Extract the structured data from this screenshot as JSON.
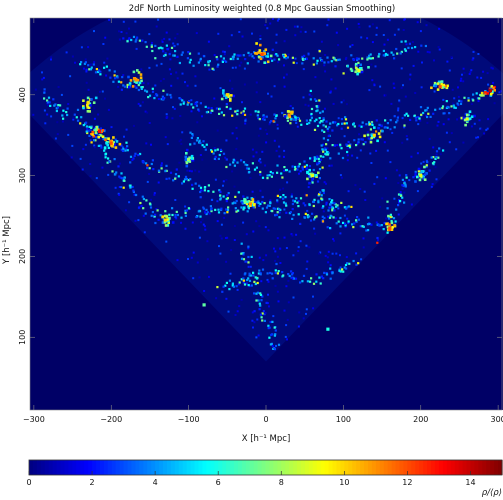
{
  "chart_data": {
    "type": "heatmap",
    "title": "2dF North Luminosity weighted (0.8 Mpc Gaussian Smoothing)",
    "xlabel": "X [h⁻¹ Mpc]",
    "ylabel": "Y [h⁻¹ Mpc]",
    "xlim": [
      -305,
      305
    ],
    "ylim": [
      10,
      495
    ],
    "x_ticks": [
      -300,
      -200,
      -100,
      0,
      100,
      200,
      300
    ],
    "x_tick_labels": [
      "−300",
      "−200",
      "−100",
      "0",
      "100",
      "200",
      "300"
    ],
    "y_ticks": [
      100,
      200,
      300,
      400
    ],
    "y_tick_labels": [
      "100",
      "200",
      "300",
      "400"
    ],
    "colorbar": {
      "label": "ρ/⟨ρ⟩",
      "range": [
        0,
        15
      ],
      "ticks": [
        0,
        2,
        4,
        6,
        8,
        10,
        12,
        14
      ],
      "tick_labels": [
        "0",
        "2",
        "4",
        "6",
        "8",
        "10",
        "12",
        "14"
      ],
      "colormap": "jet"
    },
    "background_color": "#000066",
    "survey_geometry": {
      "apex": [
        0,
        70
      ],
      "outer_radius": 470,
      "half_angle_deg": 45
    },
    "dense_clusters": [
      {
        "x": 290,
        "y": 405,
        "density": 14
      },
      {
        "x": -215,
        "y": 355,
        "density": 13
      },
      {
        "x": -200,
        "y": 340,
        "density": 12
      },
      {
        "x": 160,
        "y": 235,
        "density": 12
      },
      {
        "x": 30,
        "y": 375,
        "density": 11
      },
      {
        "x": -130,
        "y": 245,
        "density": 10
      },
      {
        "x": -20,
        "y": 265,
        "density": 11
      },
      {
        "x": 225,
        "y": 410,
        "density": 12
      },
      {
        "x": -50,
        "y": 400,
        "density": 10
      },
      {
        "x": -5,
        "y": 450,
        "density": 12
      },
      {
        "x": -170,
        "y": 420,
        "density": 11
      },
      {
        "x": 140,
        "y": 350,
        "density": 10
      },
      {
        "x": 60,
        "y": 300,
        "density": 9
      },
      {
        "x": -230,
        "y": 390,
        "density": 10
      },
      {
        "x": 120,
        "y": 430,
        "density": 9
      },
      {
        "x": -80,
        "y": 140,
        "density": 7
      },
      {
        "x": 80,
        "y": 110,
        "density": 6
      },
      {
        "x": 260,
        "y": 370,
        "density": 9
      },
      {
        "x": -100,
        "y": 320,
        "density": 8
      },
      {
        "x": 200,
        "y": 300,
        "density": 9
      }
    ],
    "filaments": [
      [
        [
          -290,
          400
        ],
        [
          -200,
          340
        ],
        [
          -120,
          300
        ],
        [
          -40,
          270
        ],
        [
          40,
          250
        ],
        [
          120,
          240
        ],
        [
          180,
          230
        ]
      ],
      [
        [
          -240,
          440
        ],
        [
          -150,
          400
        ],
        [
          -60,
          380
        ],
        [
          40,
          370
        ],
        [
          140,
          360
        ],
        [
          230,
          380
        ],
        [
          290,
          405
        ]
      ],
      [
        [
          -180,
          470
        ],
        [
          -80,
          440
        ],
        [
          0,
          450
        ],
        [
          100,
          440
        ],
        [
          200,
          460
        ]
      ],
      [
        [
          -150,
          250
        ],
        [
          -80,
          255
        ],
        [
          -20,
          265
        ],
        [
          50,
          270
        ],
        [
          110,
          260
        ]
      ],
      [
        [
          -60,
          160
        ],
        [
          0,
          180
        ],
        [
          60,
          170
        ],
        [
          120,
          190
        ],
        [
          170,
          230
        ]
      ],
      [
        [
          -100,
          350
        ],
        [
          -50,
          320
        ],
        [
          0,
          300
        ],
        [
          70,
          320
        ],
        [
          140,
          350
        ]
      ],
      [
        [
          -30,
          210
        ],
        [
          -10,
          150
        ],
        [
          10,
          100
        ],
        [
          20,
          80
        ]
      ],
      [
        [
          230,
          330
        ],
        [
          180,
          290
        ],
        [
          160,
          240
        ]
      ],
      [
        [
          -230,
          360
        ],
        [
          -190,
          300
        ],
        [
          -150,
          255
        ]
      ],
      [
        [
          60,
          400
        ],
        [
          80,
          350
        ],
        [
          60,
          300
        ],
        [
          90,
          250
        ]
      ]
    ]
  }
}
